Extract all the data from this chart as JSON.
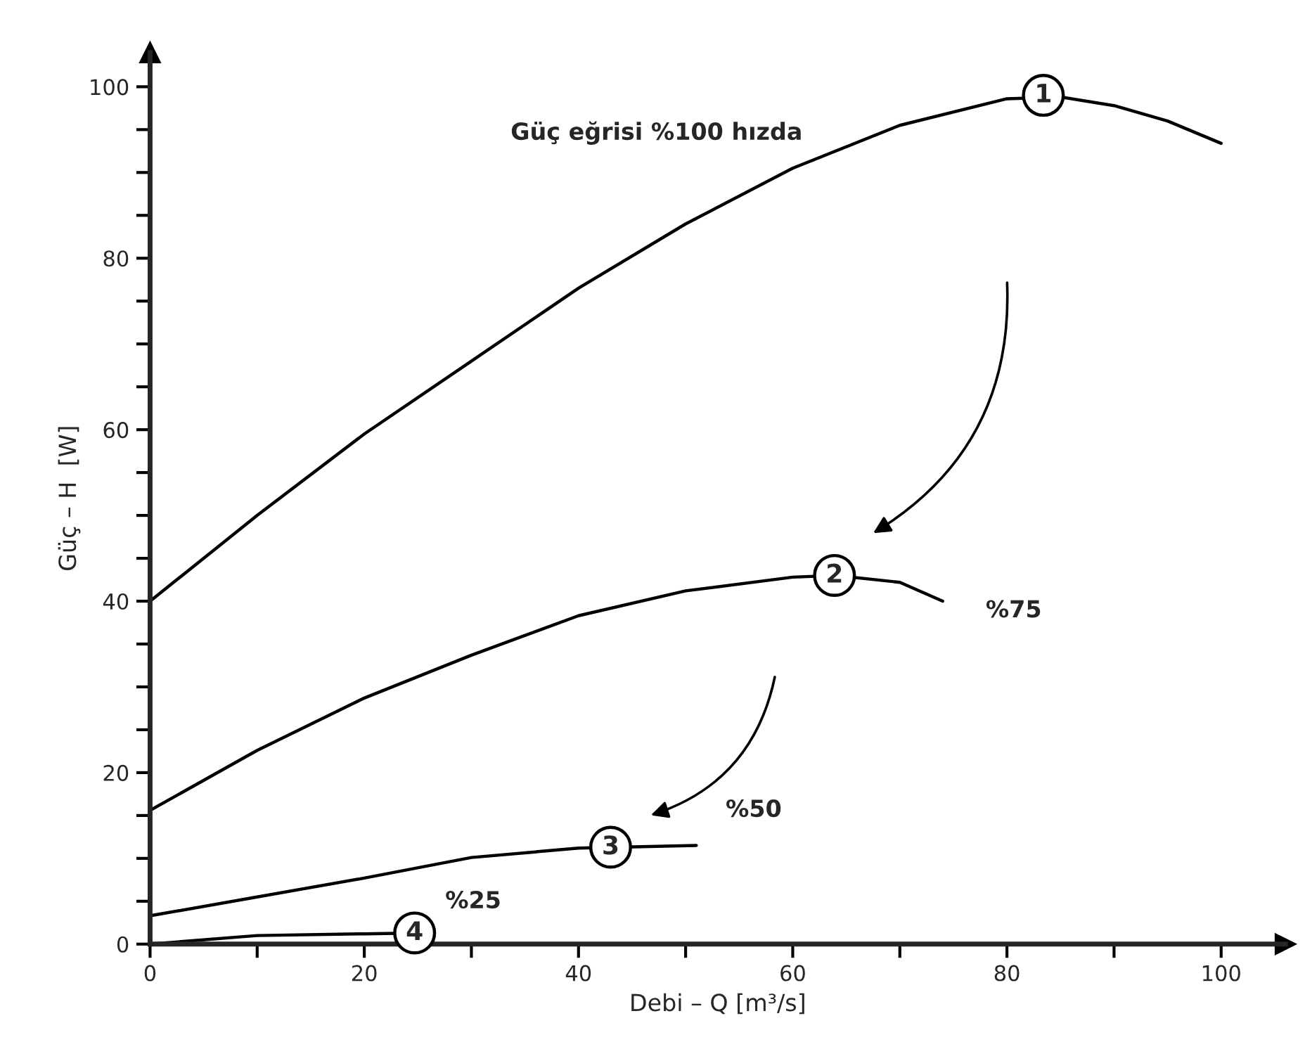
{
  "chart_data": {
    "type": "line",
    "xlabel": "Debi – Q [m³/s]",
    "ylabel": "Güç – H  [W]",
    "xlim": [
      0,
      106
    ],
    "ylim": [
      0,
      104
    ],
    "xticks": [
      0,
      {
        "value": 10,
        "label": null
      },
      20,
      {
        "value": 30,
        "label": null
      },
      40,
      {
        "value": 50,
        "label": null
      },
      60,
      {
        "value": 70,
        "label": null
      },
      80,
      {
        "value": 90,
        "label": null
      },
      100
    ],
    "yticks": [
      0,
      {
        "value": 5,
        "label": null
      },
      {
        "value": 10,
        "label": null
      },
      {
        "value": 15,
        "label": null
      },
      20,
      {
        "value": 25,
        "label": null
      },
      {
        "value": 30,
        "label": null
      },
      {
        "value": 35,
        "label": null
      },
      40,
      {
        "value": 45,
        "label": null
      },
      {
        "value": 50,
        "label": null
      },
      {
        "value": 55,
        "label": null
      },
      60,
      {
        "value": 65,
        "label": null
      },
      {
        "value": 70,
        "label": null
      },
      {
        "value": 75,
        "label": null
      },
      80,
      {
        "value": 85,
        "label": null
      },
      {
        "value": 90,
        "label": null
      },
      {
        "value": 95,
        "label": null
      },
      100
    ],
    "grid": false,
    "marker": "none",
    "line_style": "solid",
    "series": [
      {
        "name": "Güç eğrisi %100 hızda",
        "color": "#000000",
        "x": [
          0,
          10,
          20,
          30,
          40,
          50,
          60,
          70,
          80,
          85,
          90,
          95,
          100
        ],
        "values": [
          40,
          50,
          59.5,
          68,
          76.5,
          84,
          90.5,
          95.5,
          98.6,
          98.8,
          97.8,
          96,
          93.4
        ]
      },
      {
        "name": "%75",
        "color": "#000000",
        "x": [
          0,
          10,
          20,
          30,
          40,
          50,
          60,
          64,
          70,
          74
        ],
        "values": [
          15.6,
          22.6,
          28.7,
          33.7,
          38.3,
          41.2,
          42.8,
          43,
          42.2,
          40
        ]
      },
      {
        "name": "%50",
        "color": "#000000",
        "x": [
          0,
          10,
          20,
          30,
          40,
          51
        ],
        "values": [
          3.3,
          5.5,
          7.7,
          10.1,
          11.2,
          11.5
        ]
      },
      {
        "name": "%25",
        "color": "#000000",
        "x": [
          0,
          10,
          20,
          25
        ],
        "values": [
          0,
          1.0,
          1.2,
          1.3
        ]
      }
    ],
    "annotations": [
      {
        "text": "1",
        "x": 83.4,
        "y": 99
      },
      {
        "text": "2",
        "x": 63.9,
        "y": 43
      },
      {
        "text": "3",
        "x": 43,
        "y": 11.3
      },
      {
        "text": "4",
        "x": 24.7,
        "y": 1.3
      }
    ]
  }
}
